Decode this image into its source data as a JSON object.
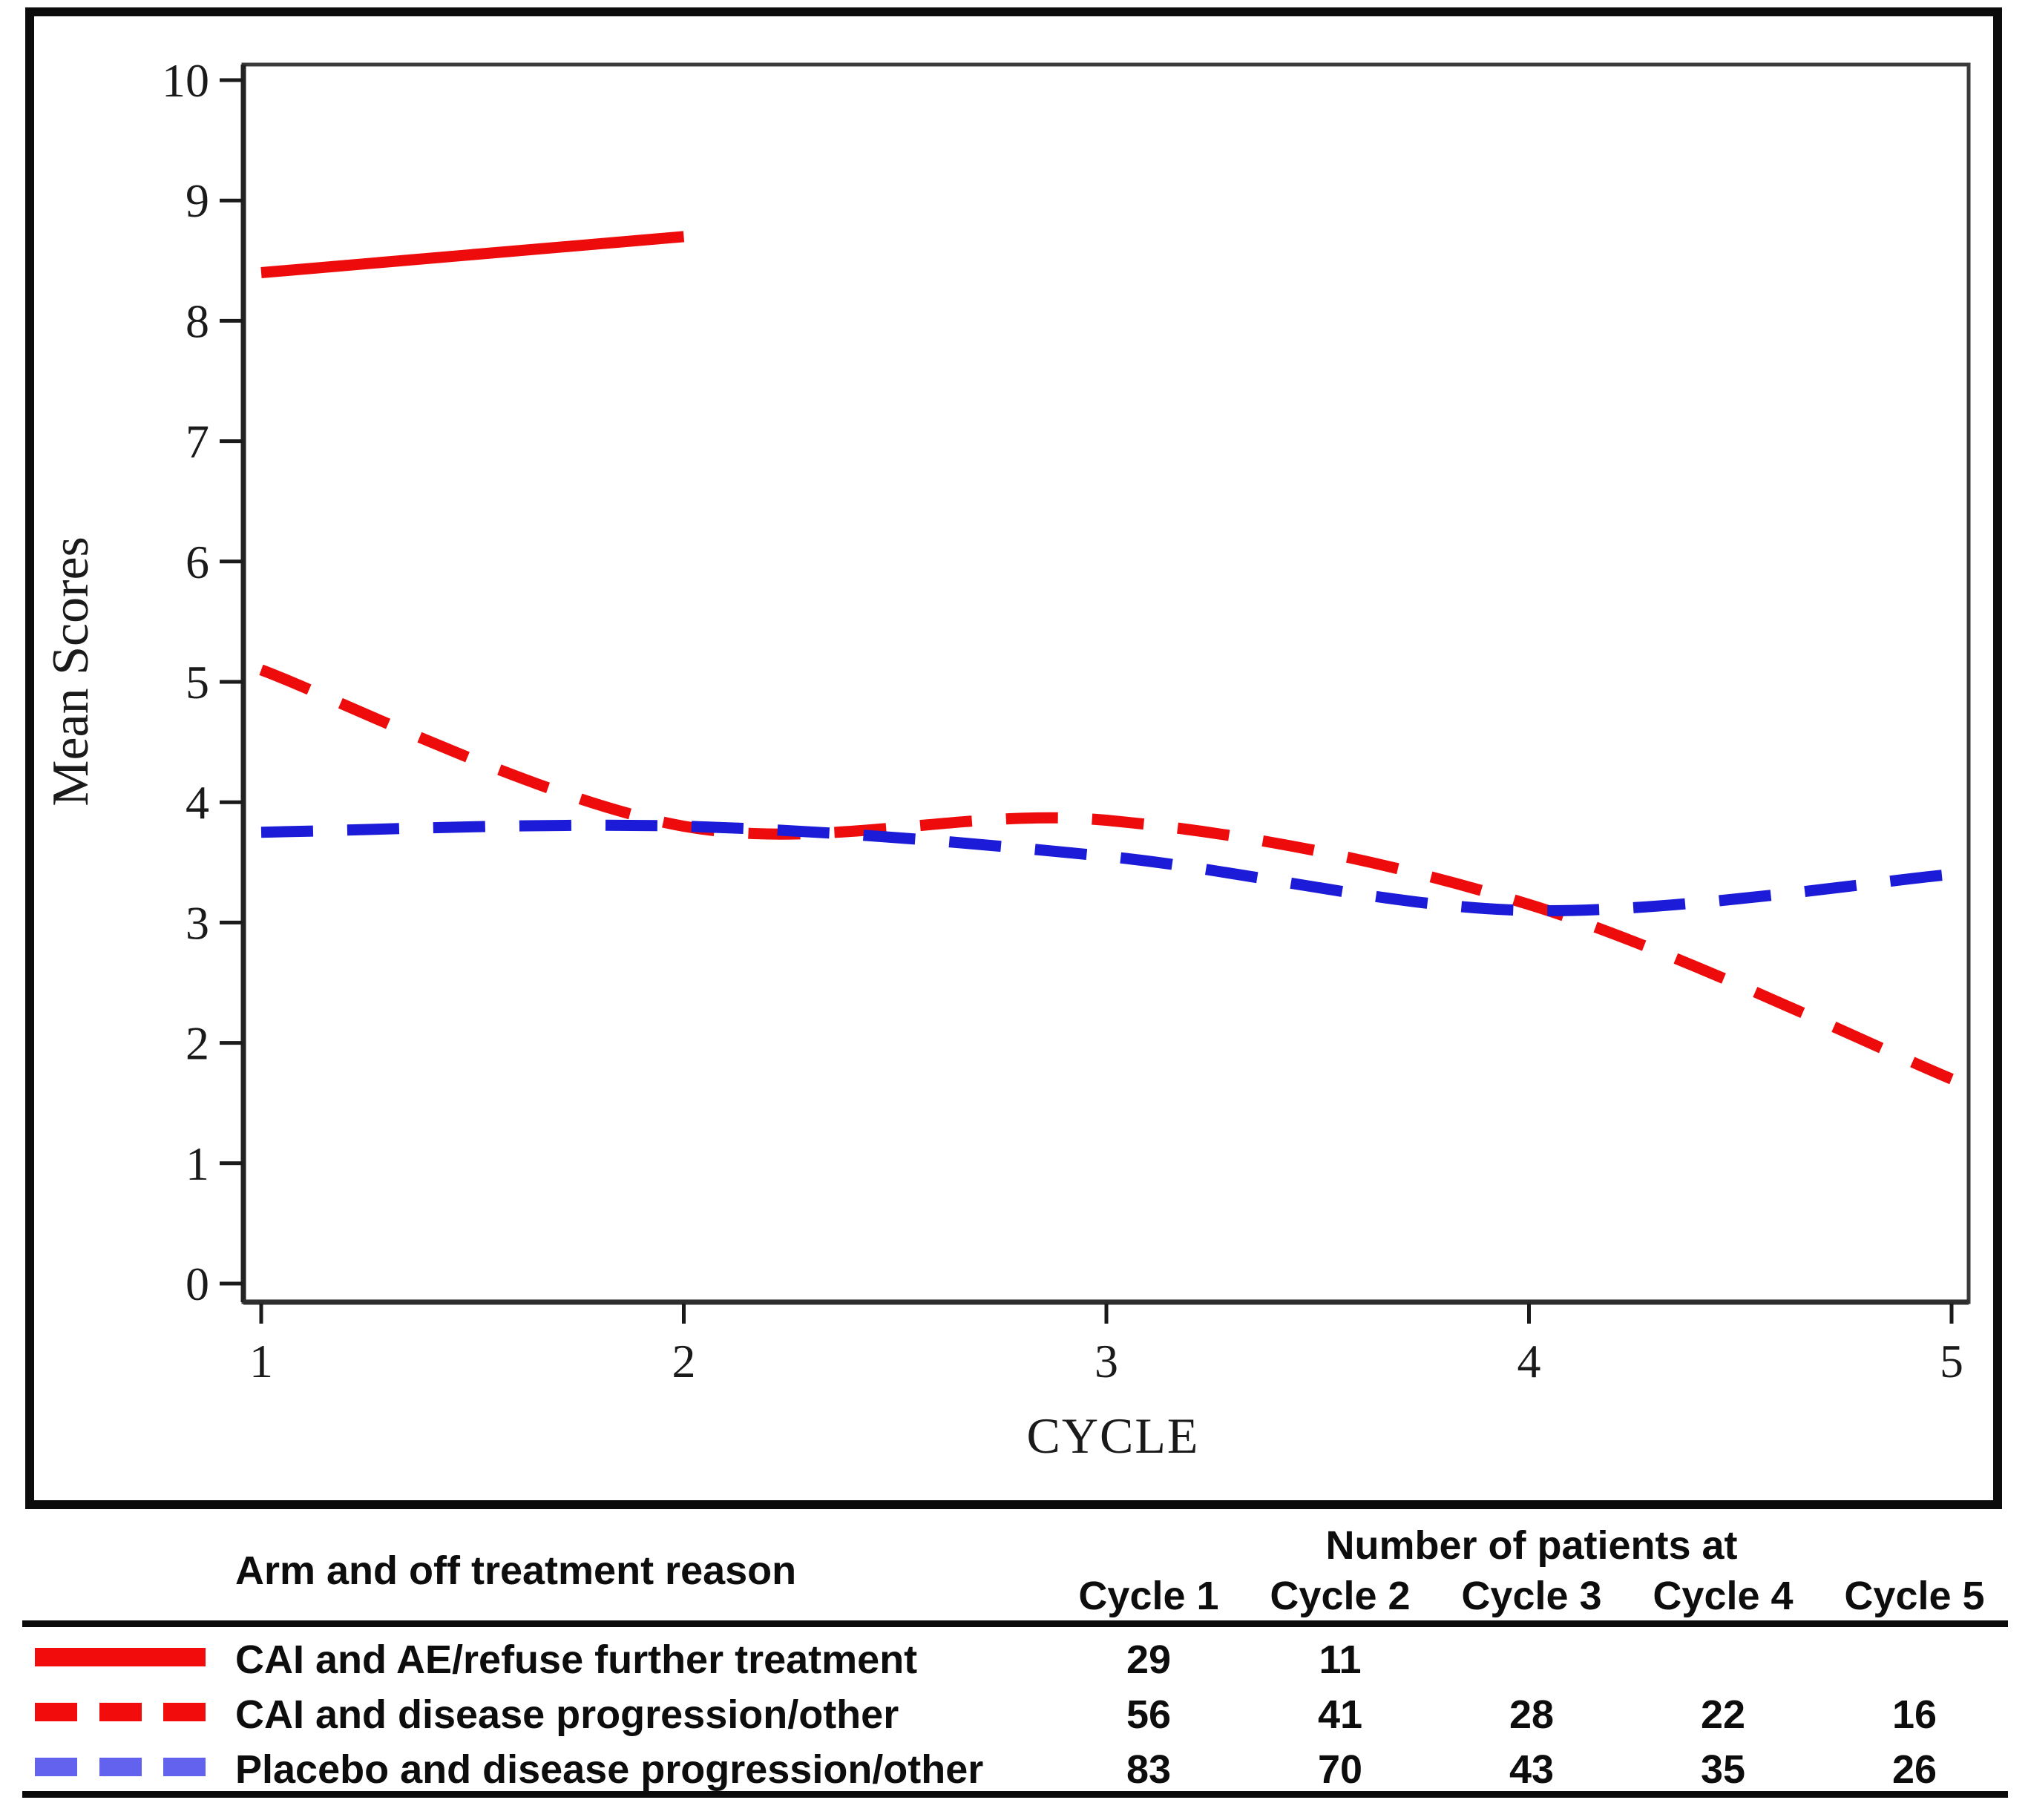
{
  "colors": {
    "red_line": "#ee0b0b",
    "blue_line": "#1b1bd8",
    "legend_red": "#f20c0c",
    "legend_blue": "#6262ee",
    "frame": "#3a3a3a",
    "tick": "#1a1a1a",
    "rule": "#0b0b0b",
    "text": "#0d0d0d"
  },
  "chart_data": {
    "type": "line",
    "title": "",
    "xlabel": "CYCLE",
    "ylabel": "Mean Scores",
    "xlim": [
      1,
      5
    ],
    "ylim": [
      0,
      10
    ],
    "xticks": [
      1,
      2,
      3,
      4,
      5
    ],
    "yticks": [
      0,
      1,
      2,
      3,
      4,
      5,
      6,
      7,
      8,
      9,
      10
    ],
    "grid": false,
    "legend_position": "table-below",
    "series": [
      {
        "name": "CAI and AE/refuse further treatment",
        "color_key": "red_line",
        "style": "solid",
        "x": [
          1,
          2
        ],
        "y": [
          8.4,
          8.7
        ]
      },
      {
        "name": "CAI and disease progression/other",
        "color_key": "red_line",
        "style": "dashed",
        "x": [
          1,
          2,
          3,
          4,
          5
        ],
        "y": [
          5.1,
          3.8,
          3.85,
          3.15,
          1.7
        ]
      },
      {
        "name": "Placebo and disease progression/other",
        "color_key": "blue_line",
        "style": "dashed",
        "x": [
          1,
          2,
          3,
          4,
          5
        ],
        "y": [
          3.75,
          3.8,
          3.55,
          3.1,
          3.4
        ]
      }
    ]
  },
  "table": {
    "col1_header": "Arm and off treatment reason",
    "patients_header": "Number of patients at",
    "cycle_headers": [
      "Cycle 1",
      "Cycle 2",
      "Cycle 3",
      "Cycle 4",
      "Cycle 5"
    ],
    "rows": [
      {
        "label": "CAI and AE/refuse further treatment",
        "swatch": "solid-red",
        "values": [
          "29",
          "11",
          "",
          "",
          ""
        ]
      },
      {
        "label": "CAI and disease progression/other",
        "swatch": "dashed-red",
        "values": [
          "56",
          "41",
          "28",
          "22",
          "16"
        ]
      },
      {
        "label": "Placebo and disease progression/other",
        "swatch": "dashed-blue",
        "values": [
          "83",
          "70",
          "43",
          "35",
          "26"
        ]
      }
    ]
  }
}
